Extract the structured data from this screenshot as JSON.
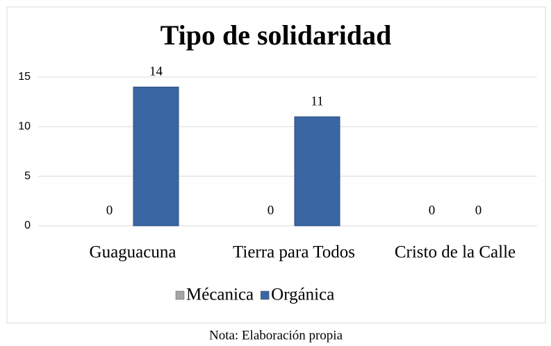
{
  "chart_data": {
    "type": "bar",
    "title": "Tipo de solidaridad",
    "categories": [
      "Guaguacuna",
      "Tierra para Todos",
      "Cristo de la Calle"
    ],
    "series": [
      {
        "name": "Mécanica",
        "color": "#a6a6a6",
        "values": [
          0,
          0,
          0
        ]
      },
      {
        "name": "Orgánica",
        "color": "#3a66a3",
        "values": [
          14,
          11,
          0
        ]
      }
    ],
    "ylim": [
      0,
      15
    ],
    "yticks": [
      0,
      5,
      10,
      15
    ],
    "grid": true,
    "legend": "bottom",
    "note": "Nota: Elaboración propia"
  }
}
